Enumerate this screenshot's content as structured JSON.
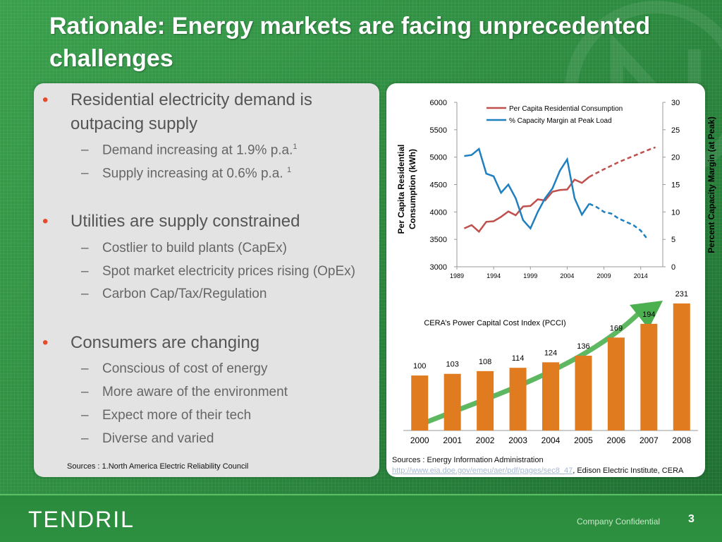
{
  "slide": {
    "title_line1": "Rationale: Energy markets are facing unprecedented",
    "title_line2": "challenges",
    "page_number": "3",
    "confidential": "Company Confidential",
    "logo": "TENDRIL"
  },
  "bullets": [
    {
      "text_line1": "Residential electricity demand is",
      "text_line2": "outpacing supply",
      "subs": [
        {
          "text": "Demand increasing at 1.9% p.a.",
          "sup": "1"
        },
        {
          "text": "Supply increasing at 0.6% p.a. ",
          "sup": "1"
        }
      ]
    },
    {
      "text_line1": "Utilities are supply constrained",
      "subs": [
        {
          "text": "Costlier to build plants (CapEx)"
        },
        {
          "text": "Spot market electricity prices rising (OpEx)"
        },
        {
          "text": "Carbon Cap/Tax/Regulation"
        }
      ]
    },
    {
      "text_line1": "Consumers are changing",
      "subs": [
        {
          "text": "Conscious of cost of energy"
        },
        {
          "text": "More aware of the environment"
        },
        {
          "text": "Expect more of their tech"
        },
        {
          "text": "Diverse and varied"
        }
      ]
    }
  ],
  "sources": {
    "left": "Sources : 1.North America Electric Reliability Council",
    "right_line1": "Sources : Energy Information Administration",
    "right_link": "http://www.eia.doe.gov/emeu/aer/pdf/pages/sec8_47",
    "right_tail": ", Edison Electric Institute, CERA"
  },
  "colors": {
    "consumption": "#c0504d",
    "capacity": "#1f7fbf",
    "bars": "#e07b20",
    "arrow": "#4caf50"
  },
  "chart_data": [
    {
      "type": "line",
      "title": "",
      "ylabel": "Per Capita Residential Consumption (kWh)",
      "ylabel_line1": "Per Capita Residential",
      "ylabel_line2": "Consumption (kWh)",
      "y2label": "Percent Capacity Margin (at Peak)",
      "ylim": [
        3000,
        6000
      ],
      "y2lim": [
        0,
        30
      ],
      "xlim": [
        1989,
        2017
      ],
      "yticks": [
        "6000",
        "5500",
        "5000",
        "4500",
        "4000",
        "3500",
        "3000"
      ],
      "y2ticks": [
        "30",
        "25",
        "20",
        "15",
        "10",
        "5",
        "0"
      ],
      "xticks": [
        "1989",
        "1994",
        "1999",
        "2004",
        "2009",
        "2014"
      ],
      "legend_position": "top",
      "series": [
        {
          "name": "Per Capita Residential Consumption",
          "axis": "left",
          "x": [
            1990,
            1991,
            1992,
            1993,
            1994,
            1995,
            1996,
            1997,
            1998,
            1999,
            2000,
            2001,
            2002,
            2003,
            2004,
            2005,
            2006,
            2007
          ],
          "y": [
            3700,
            3760,
            3640,
            3820,
            3830,
            3910,
            4010,
            3940,
            4100,
            4110,
            4230,
            4210,
            4370,
            4400,
            4410,
            4590,
            4530,
            4640
          ],
          "projection_x": [
            2007,
            2009,
            2011,
            2013,
            2015,
            2016
          ],
          "projection_y": [
            4640,
            4780,
            4910,
            5020,
            5130,
            5180
          ]
        },
        {
          "name": "% Capacity Margin at Peak Load",
          "axis": "right",
          "x": [
            1990,
            1991,
            1992,
            1993,
            1994,
            1995,
            1996,
            1997,
            1998,
            1999,
            2000,
            2001,
            2002,
            2003,
            2004,
            2005,
            2006,
            2007
          ],
          "y": [
            20.2,
            20.4,
            21.5,
            17.0,
            16.5,
            13.5,
            15.0,
            12.5,
            8.5,
            7.0,
            10.0,
            12.5,
            14.3,
            17.5,
            19.6,
            12.5,
            9.5,
            11.5
          ],
          "projection_x": [
            2007,
            2008,
            2009,
            2010,
            2011,
            2012,
            2013,
            2014,
            2015
          ],
          "projection_y": [
            11.5,
            10.9,
            10.0,
            9.7,
            8.8,
            8.2,
            7.6,
            6.6,
            4.9
          ]
        }
      ]
    },
    {
      "type": "bar",
      "title": "CERA’s Power Capital Cost Index (PCCI)",
      "categories": [
        "2000",
        "2001",
        "2002",
        "2003",
        "2004",
        "2005",
        "2006",
        "2007",
        "2008"
      ],
      "values": [
        100,
        103,
        108,
        114,
        124,
        136,
        169,
        194,
        231
      ],
      "labels": [
        "100",
        "103",
        "108",
        "114",
        "124",
        "136",
        "169",
        "194",
        "231"
      ]
    }
  ]
}
